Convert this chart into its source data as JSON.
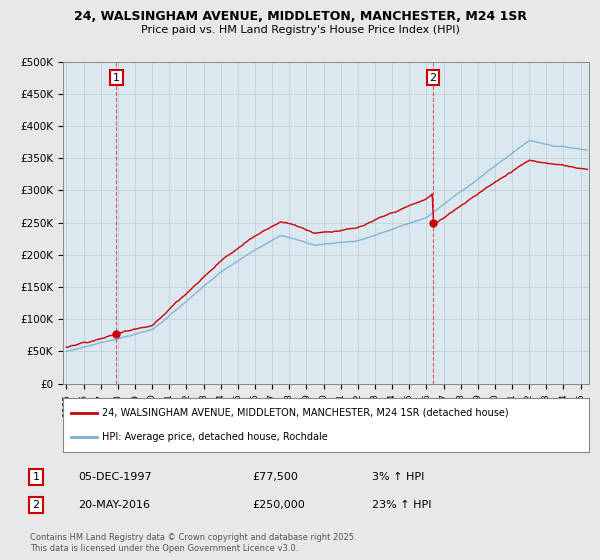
{
  "title_line1": "24, WALSINGHAM AVENUE, MIDDLETON, MANCHESTER, M24 1SR",
  "title_line2": "Price paid vs. HM Land Registry's House Price Index (HPI)",
  "ylim": [
    0,
    500000
  ],
  "xlim_start": 1994.8,
  "xlim_end": 2025.5,
  "yticks": [
    0,
    50000,
    100000,
    150000,
    200000,
    250000,
    300000,
    350000,
    400000,
    450000,
    500000
  ],
  "ytick_labels": [
    "£0",
    "£50K",
    "£100K",
    "£150K",
    "£200K",
    "£250K",
    "£300K",
    "£350K",
    "£400K",
    "£450K",
    "£500K"
  ],
  "t1": 1997.92,
  "t2": 2016.38,
  "p1": 77500,
  "p2": 250000,
  "legend_line1": "24, WALSINGHAM AVENUE, MIDDLETON, MANCHESTER, M24 1SR (detached house)",
  "legend_line2": "HPI: Average price, detached house, Rochdale",
  "table_row1": [
    "1",
    "05-DEC-1997",
    "£77,500",
    "3% ↑ HPI"
  ],
  "table_row2": [
    "2",
    "20-MAY-2016",
    "£250,000",
    "23% ↑ HPI"
  ],
  "footnote": "Contains HM Land Registry data © Crown copyright and database right 2025.\nThis data is licensed under the Open Government Licence v3.0.",
  "color_red": "#cc0000",
  "color_blue": "#7ab0d4",
  "bg_color": "#e8e8e8",
  "plot_bg": "#dce8f0"
}
